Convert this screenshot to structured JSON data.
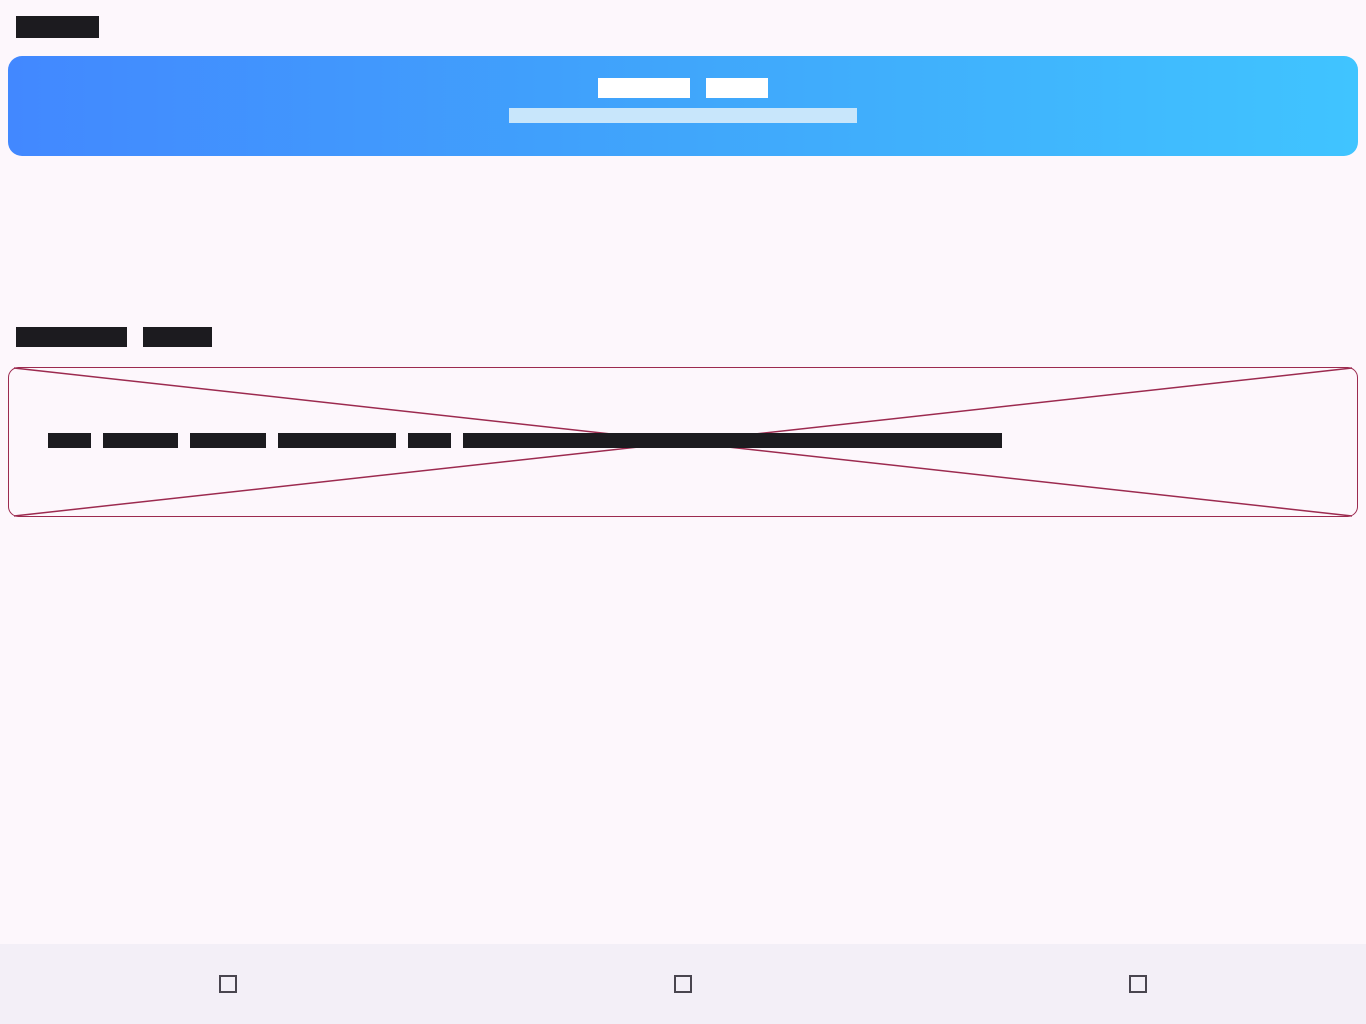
{
  "app_bar": {
    "title": "██████"
  },
  "banner": {
    "title_parts": [
      "██████",
      "████"
    ],
    "subtitle": "██████████████████████ ██████████"
  },
  "section": {
    "title_parts": [
      "████████",
      "█████"
    ]
  },
  "placeholder": {
    "message_parts": [
      "████",
      "███████",
      "███████",
      "███████████",
      "████",
      "██████████████████████████████████████████████████"
    ]
  },
  "bottom_nav": {
    "items": [
      {
        "icon": "square-icon"
      },
      {
        "icon": "square-icon"
      },
      {
        "icon": "square-icon"
      }
    ]
  },
  "colors": {
    "background": "#fdf7fc",
    "banner_start": "#4288ff",
    "banner_end": "#40c4ff",
    "placeholder_stroke": "#9c2a4f",
    "nav_background": "#f3eff7"
  }
}
